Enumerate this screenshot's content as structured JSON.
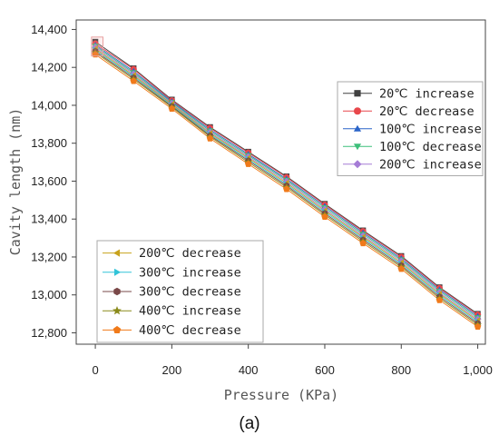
{
  "chart_data": {
    "type": "line",
    "caption": "(a)",
    "xlabel": "Pressure (KPa)",
    "ylabel": "Cavity length (nm)",
    "xlim": [
      -50,
      1020
    ],
    "ylim": [
      12740,
      14450
    ],
    "x_ticks": [
      0,
      200,
      400,
      600,
      800,
      1000
    ],
    "x_tick_labels": [
      "0",
      "200",
      "400",
      "600",
      "800",
      "1,000"
    ],
    "y_ticks": [
      12800,
      13000,
      13200,
      13400,
      13600,
      13800,
      14000,
      14200,
      14400
    ],
    "y_tick_labels": [
      "12,800",
      "13,000",
      "13,200",
      "13,400",
      "13,600",
      "13,800",
      "14,000",
      "14,200",
      "14,400"
    ],
    "x": [
      0,
      100,
      200,
      300,
      400,
      500,
      600,
      700,
      800,
      900,
      1000
    ],
    "highlight_box": {
      "x_range": [
        -10,
        20
      ],
      "y_range": [
        14260,
        14360
      ]
    },
    "grid": false,
    "series": [
      {
        "name": "20℃ increase",
        "marker": "square",
        "color": "#404040",
        "values": [
          14335,
          14195,
          14030,
          13885,
          13755,
          13625,
          13480,
          13340,
          13205,
          13040,
          12900
        ]
      },
      {
        "name": "20℃ decrease",
        "marker": "circle",
        "color": "#e8474b",
        "values": [
          14325,
          14190,
          14025,
          13880,
          13750,
          13620,
          13475,
          13335,
          13200,
          13035,
          12895
        ]
      },
      {
        "name": "100℃ increase",
        "marker": "triangle-up",
        "color": "#2a64c8",
        "values": [
          14318,
          14180,
          14020,
          13872,
          13742,
          13612,
          13468,
          13328,
          13192,
          13028,
          12888
        ]
      },
      {
        "name": "100℃ decrease",
        "marker": "triangle-down",
        "color": "#3dbf7a",
        "values": [
          14312,
          14172,
          14015,
          13865,
          13735,
          13605,
          13460,
          13320,
          13185,
          13020,
          12880
        ]
      },
      {
        "name": "200℃ increase",
        "marker": "diamond",
        "color": "#a57cd6",
        "values": [
          14305,
          14165,
          14010,
          13858,
          13728,
          13598,
          13452,
          13312,
          13178,
          13012,
          12872
        ]
      },
      {
        "name": "200℃ decrease",
        "marker": "triangle-left",
        "color": "#c8a21c",
        "values": [
          14298,
          14158,
          14005,
          13852,
          13722,
          13590,
          13445,
          13305,
          13170,
          13005,
          12865
        ]
      },
      {
        "name": "300℃ increase",
        "marker": "triangle-right",
        "color": "#32c4d8",
        "values": [
          14292,
          14152,
          14000,
          13846,
          13715,
          13583,
          13438,
          13298,
          13163,
          12998,
          12858
        ]
      },
      {
        "name": "300℃ decrease",
        "marker": "hexagon",
        "color": "#7a4848",
        "values": [
          14285,
          14145,
          13995,
          13840,
          13708,
          13576,
          13430,
          13290,
          13155,
          12990,
          12850
        ]
      },
      {
        "name": "400℃ increase",
        "marker": "star",
        "color": "#8a8a1a",
        "values": [
          14278,
          14138,
          13990,
          13834,
          13700,
          13568,
          13422,
          13282,
          13147,
          12982,
          12842
        ]
      },
      {
        "name": "400℃ decrease",
        "marker": "pentagon",
        "color": "#f07a1a",
        "values": [
          14268,
          14128,
          13982,
          13825,
          13690,
          13558,
          13412,
          13272,
          13137,
          12972,
          12832
        ]
      }
    ],
    "legends": [
      {
        "position": "upper-right",
        "entries": [
          0,
          1,
          2,
          3,
          4
        ]
      },
      {
        "position": "lower-left",
        "entries": [
          5,
          6,
          7,
          8,
          9
        ]
      }
    ]
  }
}
